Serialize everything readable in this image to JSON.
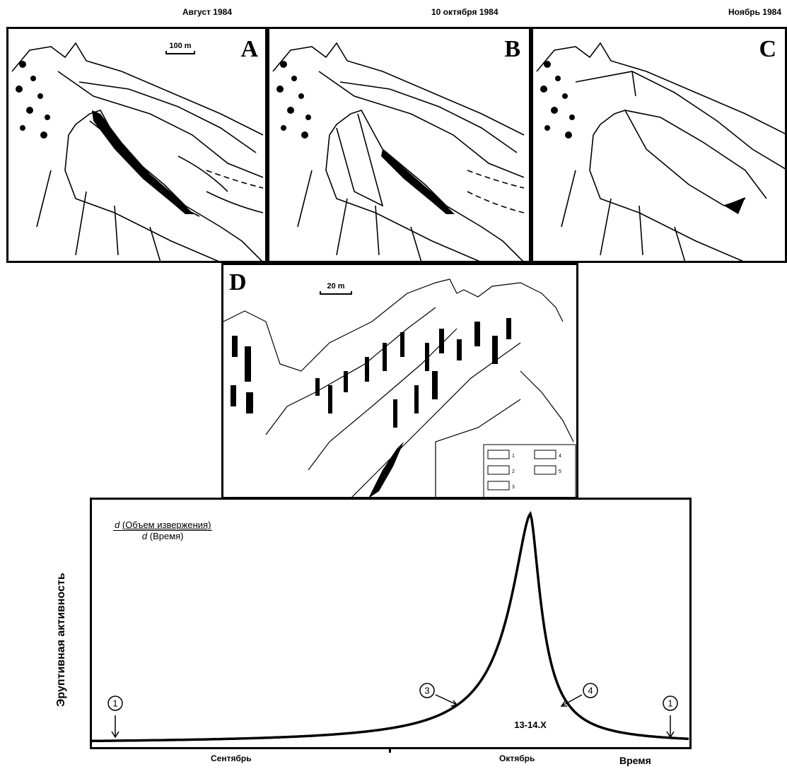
{
  "headers": [
    "Август 1984",
    "10 октября 1984",
    "Ноябрь 1984"
  ],
  "panels": {
    "a": {
      "letter": "A",
      "scale": "100 m"
    },
    "b": {
      "letter": "B"
    },
    "c": {
      "letter": "C"
    },
    "d": {
      "letter": "D",
      "scale": "20 m",
      "legend": [
        "1",
        "2",
        "3",
        "4",
        "5"
      ]
    }
  },
  "chart_data": {
    "type": "line",
    "ylabel": "Эруптивная активность",
    "xlabel": "Время",
    "formula_numerator_var": "d",
    "formula_numerator": "(Объем извержения)",
    "formula_denominator_var": "d",
    "formula_denominator": "(Время)",
    "x_ticks": [
      "Сентябрь",
      "Октябрь"
    ],
    "peak_label": "13-14.X",
    "markers": [
      "1",
      "3",
      "4",
      "1"
    ],
    "peak_date": "13-14.X"
  }
}
